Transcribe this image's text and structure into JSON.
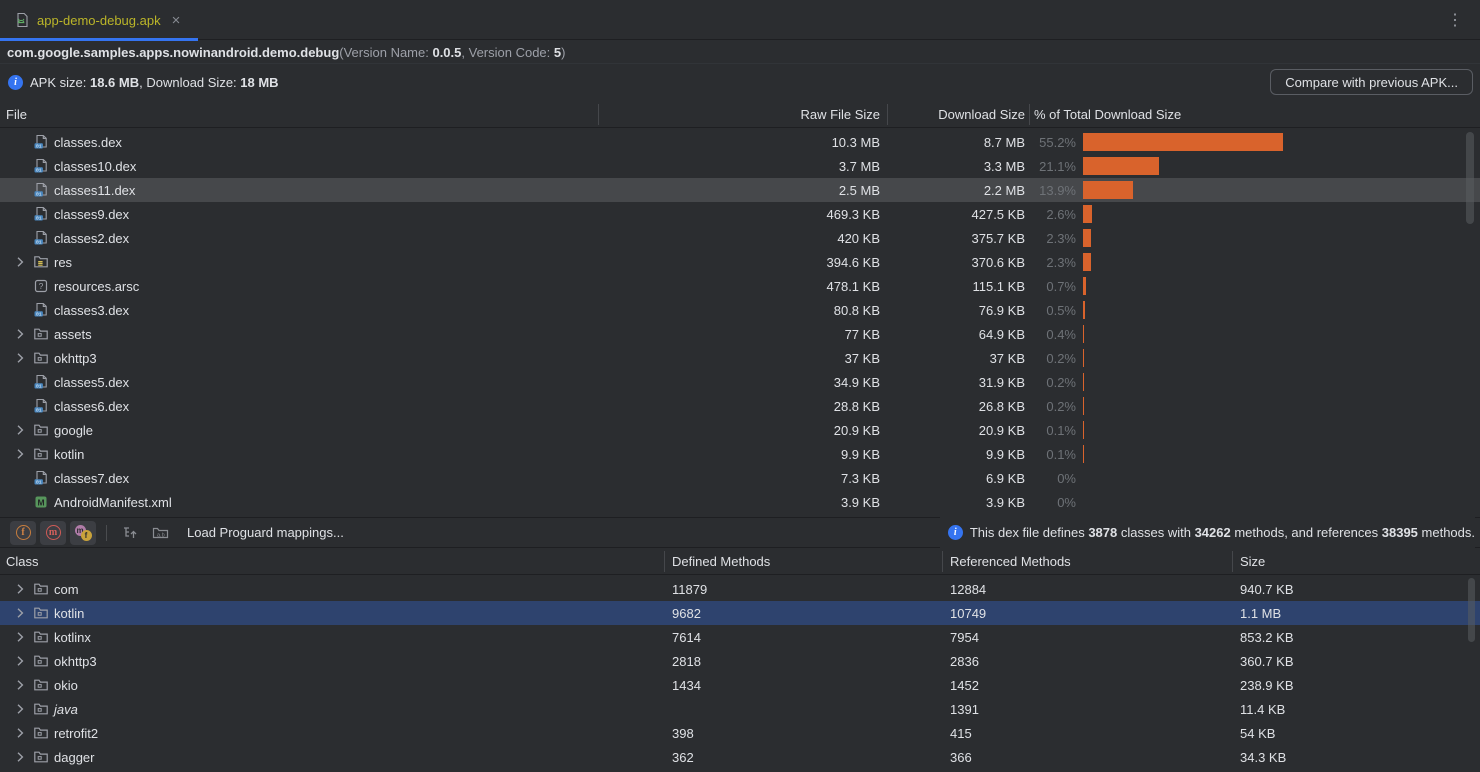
{
  "colors": {
    "background": "#2b2d30",
    "accent_blue": "#3574f0",
    "bar_orange": "#d9632c",
    "selection_gray": "#46484b",
    "selection_blue": "#2e436e",
    "tab_label_yellow": "#bbb529",
    "manifest_green": "#5fad65"
  },
  "tab": {
    "title": "app-demo-debug.apk",
    "close_glyph": "×",
    "kebab_glyph": "⋮"
  },
  "header": {
    "package_name": "com.google.samples.apps.nowinandroid.demo.debug",
    "version_prefix": "(Version Name: ",
    "version_name": "0.0.5",
    "version_mid": ", Version Code: ",
    "version_code": "5",
    "version_suffix": ")",
    "apk_size_label": "APK size: ",
    "apk_size_value": "18.6 MB",
    "download_size_label": ", Download Size: ",
    "download_size_value": "18 MB",
    "compare_button": "Compare with previous APK..."
  },
  "file_table": {
    "columns": {
      "file": "File",
      "raw": "Raw File Size",
      "download": "Download Size",
      "pct": "% of Total Download Size"
    },
    "rows": [
      {
        "name": "classes.dex",
        "icon": "dex",
        "chevron": false,
        "raw": "10.3 MB",
        "download": "8.7 MB",
        "pct": "55.2%",
        "pct_num": 55.2,
        "selected": false
      },
      {
        "name": "classes10.dex",
        "icon": "dex",
        "chevron": false,
        "raw": "3.7 MB",
        "download": "3.3 MB",
        "pct": "21.1%",
        "pct_num": 21.1,
        "selected": false
      },
      {
        "name": "classes11.dex",
        "icon": "dex",
        "chevron": false,
        "raw": "2.5 MB",
        "download": "2.2 MB",
        "pct": "13.9%",
        "pct_num": 13.9,
        "selected": true
      },
      {
        "name": "classes9.dex",
        "icon": "dex",
        "chevron": false,
        "raw": "469.3 KB",
        "download": "427.5 KB",
        "pct": "2.6%",
        "pct_num": 2.6,
        "selected": false
      },
      {
        "name": "classes2.dex",
        "icon": "dex",
        "chevron": false,
        "raw": "420 KB",
        "download": "375.7 KB",
        "pct": "2.3%",
        "pct_num": 2.3,
        "selected": false
      },
      {
        "name": "res",
        "icon": "folder-res",
        "chevron": true,
        "raw": "394.6 KB",
        "download": "370.6 KB",
        "pct": "2.3%",
        "pct_num": 2.3,
        "selected": false
      },
      {
        "name": "resources.arsc",
        "icon": "arsc",
        "chevron": false,
        "raw": "478.1 KB",
        "download": "115.1 KB",
        "pct": "0.7%",
        "pct_num": 0.7,
        "selected": false
      },
      {
        "name": "classes3.dex",
        "icon": "dex",
        "chevron": false,
        "raw": "80.8 KB",
        "download": "76.9 KB",
        "pct": "0.5%",
        "pct_num": 0.5,
        "selected": false
      },
      {
        "name": "assets",
        "icon": "folder",
        "chevron": true,
        "raw": "77 KB",
        "download": "64.9 KB",
        "pct": "0.4%",
        "pct_num": 0.4,
        "selected": false
      },
      {
        "name": "okhttp3",
        "icon": "folder",
        "chevron": true,
        "raw": "37 KB",
        "download": "37 KB",
        "pct": "0.2%",
        "pct_num": 0.2,
        "selected": false
      },
      {
        "name": "classes5.dex",
        "icon": "dex",
        "chevron": false,
        "raw": "34.9 KB",
        "download": "31.9 KB",
        "pct": "0.2%",
        "pct_num": 0.2,
        "selected": false
      },
      {
        "name": "classes6.dex",
        "icon": "dex",
        "chevron": false,
        "raw": "28.8 KB",
        "download": "26.8 KB",
        "pct": "0.2%",
        "pct_num": 0.2,
        "selected": false
      },
      {
        "name": "google",
        "icon": "folder",
        "chevron": true,
        "raw": "20.9 KB",
        "download": "20.9 KB",
        "pct": "0.1%",
        "pct_num": 0.1,
        "selected": false
      },
      {
        "name": "kotlin",
        "icon": "folder",
        "chevron": true,
        "raw": "9.9 KB",
        "download": "9.9 KB",
        "pct": "0.1%",
        "pct_num": 0.1,
        "selected": false
      },
      {
        "name": "classes7.dex",
        "icon": "dex",
        "chevron": false,
        "raw": "7.3 KB",
        "download": "6.9 KB",
        "pct": "0%",
        "pct_num": 0,
        "selected": false
      },
      {
        "name": "AndroidManifest.xml",
        "icon": "manifest",
        "chevron": false,
        "raw": "3.9 KB",
        "download": "3.9 KB",
        "pct": "0%",
        "pct_num": 0,
        "selected": false
      }
    ]
  },
  "toolbar": {
    "show_fields_glyph": "f",
    "show_methods_glyph": "m",
    "referenced_glyph_m": "m",
    "referenced_glyph_f": "f",
    "ab_label": "a.b",
    "load_proguard_label": "Load Proguard mappings..."
  },
  "dex_info": {
    "seg1": "This dex file defines ",
    "classes": "3878",
    "seg2": " classes with ",
    "methods": "34262",
    "seg3": " methods, and references ",
    "referenced": "38395",
    "seg4": " methods."
  },
  "class_table": {
    "columns": {
      "class": "Class",
      "defined": "Defined Methods",
      "referenced": "Referenced Methods",
      "size": "Size"
    },
    "rows": [
      {
        "name": "com",
        "defined": "11879",
        "referenced": "12884",
        "size": "940.7 KB",
        "selected": false,
        "italic": false
      },
      {
        "name": "kotlin",
        "defined": "9682",
        "referenced": "10749",
        "size": "1.1 MB",
        "selected": true,
        "italic": false
      },
      {
        "name": "kotlinx",
        "defined": "7614",
        "referenced": "7954",
        "size": "853.2 KB",
        "selected": false,
        "italic": false
      },
      {
        "name": "okhttp3",
        "defined": "2818",
        "referenced": "2836",
        "size": "360.7 KB",
        "selected": false,
        "italic": false
      },
      {
        "name": "okio",
        "defined": "1434",
        "referenced": "1452",
        "size": "238.9 KB",
        "selected": false,
        "italic": false
      },
      {
        "name": "java",
        "defined": "",
        "referenced": "1391",
        "size": "11.4 KB",
        "selected": false,
        "italic": true
      },
      {
        "name": "retrofit2",
        "defined": "398",
        "referenced": "415",
        "size": "54 KB",
        "selected": false,
        "italic": false
      },
      {
        "name": "dagger",
        "defined": "362",
        "referenced": "366",
        "size": "34.3 KB",
        "selected": false,
        "italic": false
      }
    ]
  }
}
